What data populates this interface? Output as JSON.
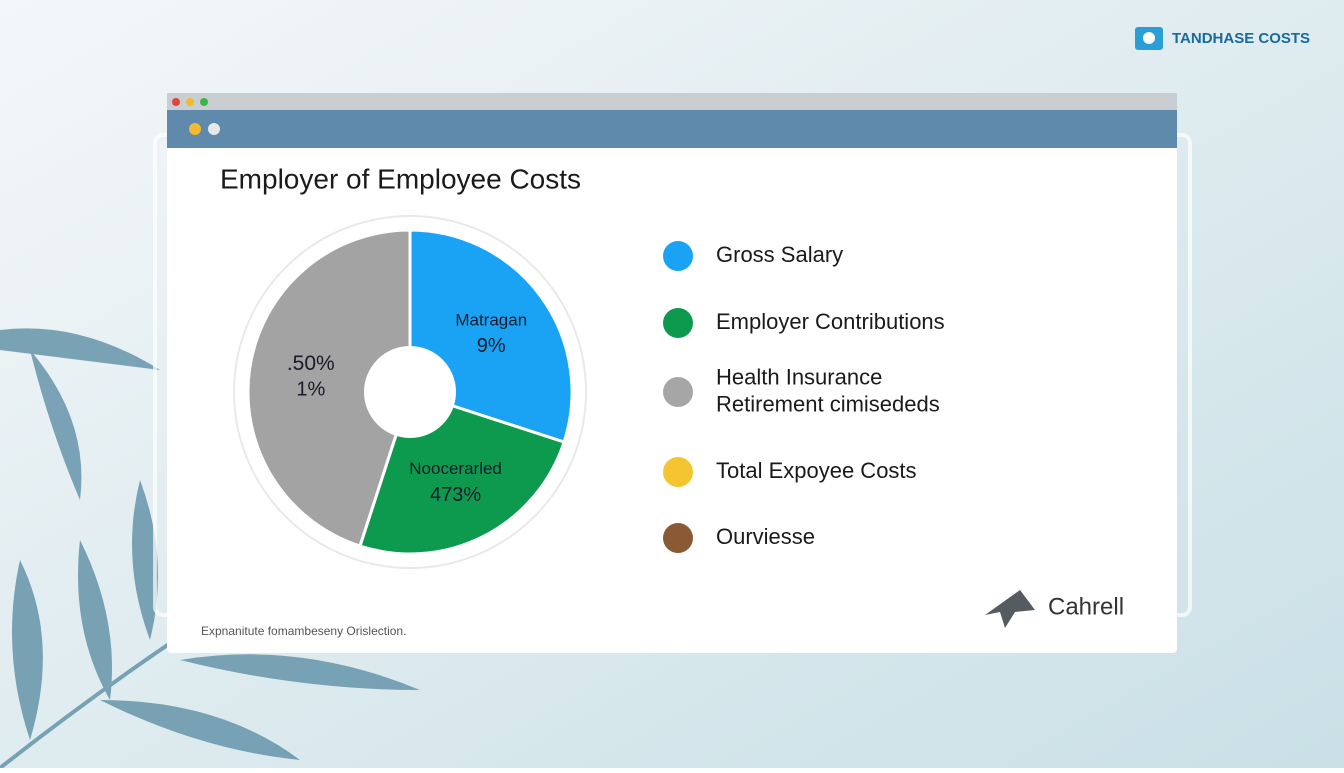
{
  "brand": {
    "title": "TANDHASE COSTS"
  },
  "chart_data": {
    "type": "pie",
    "title": "Employer of Employee Costs",
    "values": [
      30,
      25,
      45
    ],
    "colors": [
      "#1aa3f5",
      "#0e9a4e",
      "#a3a3a3"
    ],
    "annotations": [
      {
        "name": "Matragan",
        "text": "9%"
      },
      {
        "name": "Noocerarled",
        "text": "473%"
      },
      {
        "name": ".50%",
        "text": "1%"
      }
    ]
  },
  "legend": [
    {
      "label": [
        "Gross Salary"
      ],
      "color": "#1aa3f5"
    },
    {
      "label": [
        "Employer Contributions"
      ],
      "color": "#0e9a4e"
    },
    {
      "label": [
        "Health Insurance",
        "Retirement cimisededs"
      ],
      "color": "#a6a6a6"
    },
    {
      "label": [
        "Total Expoyee Costs"
      ],
      "color": "#f5c431"
    },
    {
      "label": [
        "Ourviesse"
      ],
      "color": "#8a5a35"
    }
  ],
  "footnote": "Expnanitute fomambeseny Orislection.",
  "logo": "Cahrell"
}
